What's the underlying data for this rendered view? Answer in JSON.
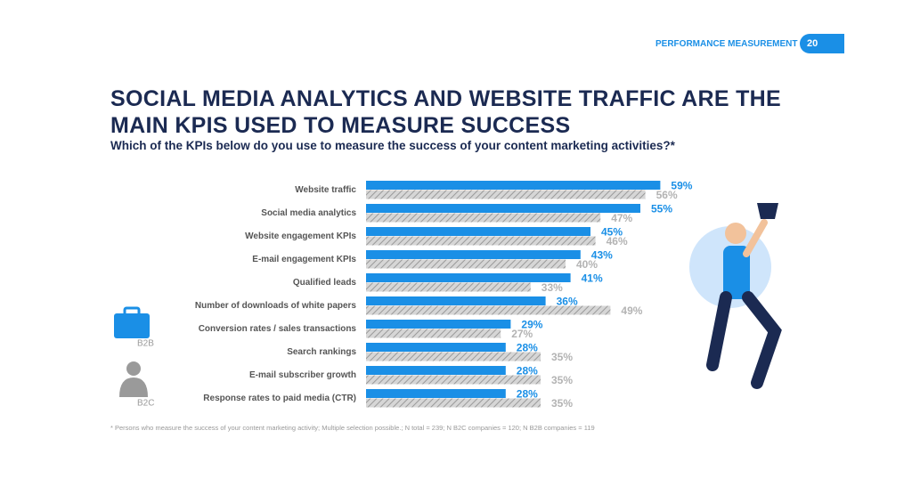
{
  "header": {
    "section": "PERFORMANCE MEASUREMENT",
    "page": "20"
  },
  "chart_data": {
    "type": "bar",
    "orientation": "horizontal",
    "title": "SOCIAL MEDIA ANALYTICS AND WEBSITE TRAFFIC ARE THE MAIN KPIS USED TO MEASURE SUCCESS",
    "subtitle": "Which of the KPIs below do you use to measure the success of your content marketing activities?*",
    "categories": [
      "Website traffic",
      "Social media analytics",
      "Website engagement KPIs",
      "E-mail engagement KPIs",
      "Qualified leads",
      "Number of downloads of white papers",
      "Conversion rates / sales transactions",
      "Search rankings",
      "E-mail subscriber growth",
      "Response rates to paid media (CTR)"
    ],
    "series": [
      {
        "name": "B2B",
        "color": "#1a8fe6",
        "values": [
          59,
          55,
          45,
          43,
          41,
          36,
          29,
          28,
          28,
          28
        ],
        "value_labels": [
          "59%",
          "55%",
          "45%",
          "43%",
          "41%",
          "36%",
          "29%",
          "28%",
          "28%",
          "28%"
        ]
      },
      {
        "name": "B2C",
        "color": "#b3b3b3",
        "values": [
          56,
          47,
          46,
          40,
          33,
          49,
          27,
          35,
          35,
          35
        ],
        "value_labels": [
          "56%",
          "47%",
          "46%",
          "40%",
          "33%",
          "49%",
          "27%",
          "35%",
          "35%",
          "35%"
        ]
      }
    ],
    "footnote": "* Persons who measure the success of your content marketing activity; Multiple selection possible.; N total = 239; N B2C companies = 120; N B2B companies = 119"
  }
}
